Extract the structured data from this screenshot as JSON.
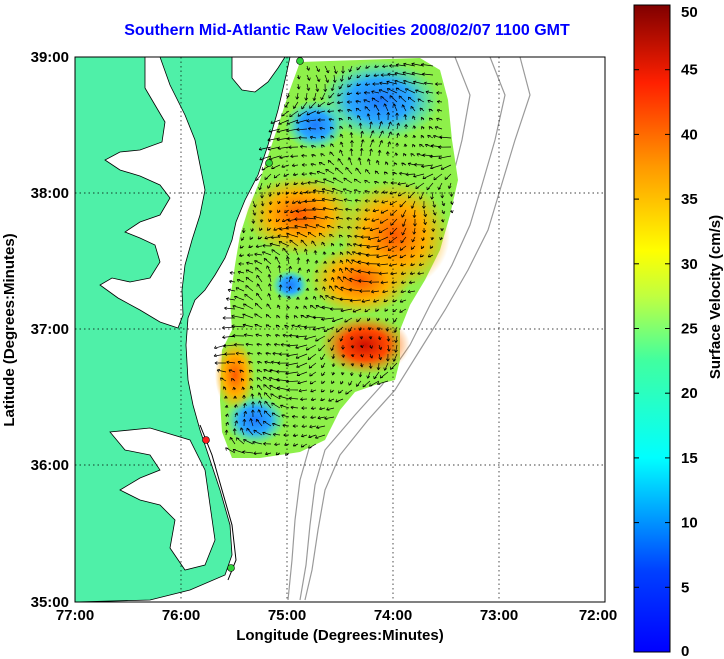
{
  "title": "Southern Mid-Atlantic Raw Velocities 2008/02/07 1100 GMT",
  "xlabel": "Longitude (Degrees:Minutes)",
  "ylabel": "Latitude (Degrees:Minutes)",
  "x_ticks": [
    "77:00",
    "76:00",
    "75:00",
    "74:00",
    "73:00",
    "72:00"
  ],
  "y_ticks": [
    "39:00",
    "38:00",
    "37:00",
    "36:00",
    "35:00"
  ],
  "colorbar": {
    "label": "Surface Velocity (cm/s)",
    "ticks": [
      "0",
      "5",
      "10",
      "15",
      "20",
      "25",
      "30",
      "35",
      "40",
      "45",
      "50"
    ]
  },
  "colors": {
    "land": "#4ff0a8",
    "water": "#ffffff",
    "title": "#0000ff",
    "station_green": "#2fd33a",
    "station_red": "#ff1e1e"
  }
}
